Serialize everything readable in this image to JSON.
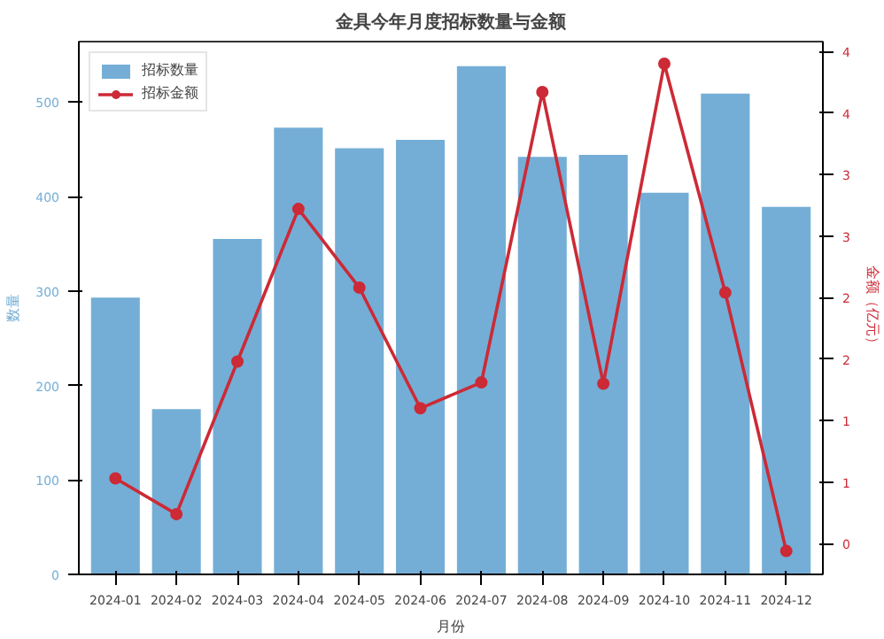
{
  "chart_data": {
    "type": "bar",
    "title": "金具今年月度招标数量与金额",
    "xlabel": "月份",
    "ylabel": "数量",
    "y2label": "金额（亿元）",
    "categories": [
      "2024-01",
      "2024-02",
      "2024-03",
      "2024-04",
      "2024-05",
      "2024-06",
      "2024-07",
      "2024-08",
      "2024-09",
      "2024-10",
      "2024-11",
      "2024-12"
    ],
    "series": [
      {
        "name": "招标数量",
        "color": "#74aed6",
        "values": [
          293,
          175,
          355,
          473,
          451,
          460,
          538,
          442,
          444,
          404,
          509,
          389
        ]
      },
      {
        "name": "招标金额",
        "type": "line",
        "axis": "y2",
        "color": "#cc2a36",
        "marker": "circle",
        "values": [
          0.53,
          0.24,
          1.48,
          2.72,
          2.08,
          1.1,
          1.31,
          3.67,
          1.3,
          3.9,
          2.04,
          -0.06
        ]
      }
    ],
    "ylim": [
      0,
      564
    ],
    "yticks": [
      0,
      100,
      200,
      300,
      400,
      500
    ],
    "y2lim": [
      -0.25,
      4.08
    ],
    "y2ticks": [
      0,
      {
        "value": 0.5,
        "label": "1"
      },
      1,
      {
        "value": 1.5,
        "label": "2"
      },
      2,
      {
        "value": 2.5,
        "label": "3"
      },
      3,
      {
        "value": 3.5,
        "label": "4"
      },
      4
    ],
    "legend": "top left",
    "grid": false
  }
}
